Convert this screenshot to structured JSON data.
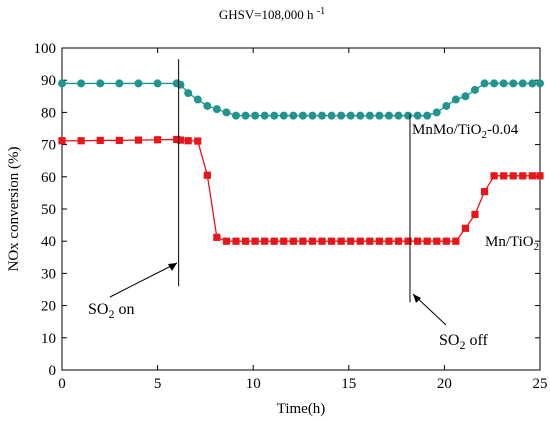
{
  "chart_data": {
    "type": "line",
    "title": "GHSV=108,000 h",
    "title_sup": "-1",
    "xlabel": "Time(h)",
    "ylabel": "NOx conversion (%)",
    "xlim": [
      0,
      25
    ],
    "ylim": [
      0,
      100
    ],
    "xticks": [
      0,
      5,
      10,
      15,
      20,
      25
    ],
    "yticks": [
      0,
      10,
      20,
      30,
      40,
      50,
      60,
      70,
      80,
      90,
      100
    ],
    "grid": false,
    "series": [
      {
        "name": "MnMo/TiO2-0.04",
        "color": "#20958f",
        "marker": "circle",
        "x": [
          0,
          1,
          2,
          3,
          4,
          5,
          6,
          6.2,
          6.6,
          7.1,
          7.6,
          8.1,
          8.6,
          9.1,
          9.6,
          10.1,
          10.6,
          11.1,
          11.6,
          12.1,
          12.6,
          13.1,
          13.6,
          14.1,
          14.6,
          15.1,
          15.6,
          16.1,
          16.6,
          17.1,
          17.6,
          18.1,
          18.6,
          19.1,
          19.6,
          20.1,
          20.6,
          21.1,
          21.6,
          22.1,
          22.6,
          23.1,
          23.6,
          24.1,
          24.6,
          25
        ],
        "values": [
          89,
          89,
          89,
          89,
          89,
          89,
          89,
          88.6,
          86,
          84,
          82,
          81,
          80,
          79,
          79,
          79,
          79,
          79,
          79,
          79,
          79,
          79,
          79,
          79,
          79,
          79,
          79,
          79,
          79,
          79,
          79,
          79,
          79,
          79,
          80,
          82,
          84,
          85,
          87,
          89,
          89,
          89,
          89,
          89,
          89,
          89
        ]
      },
      {
        "name": "Mn/TiO2",
        "color": "#e8151b",
        "marker": "square",
        "x": [
          0,
          1,
          2,
          3,
          4,
          5,
          6,
          6.2,
          6.6,
          7.1,
          7.6,
          8.1,
          8.6,
          9.1,
          9.6,
          10.1,
          10.6,
          11.1,
          11.6,
          12.1,
          12.6,
          13.1,
          13.6,
          14.1,
          14.6,
          15.1,
          15.6,
          16.1,
          16.6,
          17.1,
          17.6,
          18.1,
          18.6,
          19.1,
          19.6,
          20.1,
          20.6,
          21.1,
          21.6,
          22.1,
          22.6,
          23.1,
          23.6,
          24.1,
          24.6,
          25
        ],
        "values": [
          71.2,
          71.2,
          71.3,
          71.3,
          71.4,
          71.5,
          71.6,
          71.4,
          71.2,
          71.1,
          60.5,
          41.2,
          40,
          40,
          40,
          40,
          40,
          40,
          40,
          40,
          40,
          40,
          40,
          40,
          40,
          40,
          40,
          40,
          40,
          40,
          40,
          40,
          40,
          40,
          40,
          40,
          40,
          44,
          48.3,
          55.4,
          60.3,
          60.3,
          60.3,
          60.3,
          60.3,
          60.3
        ]
      }
    ],
    "markers_vertical": [
      {
        "x": 6.1,
        "y_from": 26,
        "y_to": 96.5
      },
      {
        "x": 18.2,
        "y_from": 21,
        "y_to": 79.5
      }
    ],
    "annotations": {
      "so2_on": {
        "main": "SO",
        "sub": "2",
        "rest": " on"
      },
      "so2_off": {
        "main": "SO",
        "sub": "2",
        "rest": " off"
      },
      "label_mnmo": {
        "main": "MnMo/TiO",
        "sub": "2",
        "rest": "-0.04"
      },
      "label_mn": {
        "main": "Mn/TiO",
        "sub": "2",
        "rest": ""
      }
    }
  }
}
